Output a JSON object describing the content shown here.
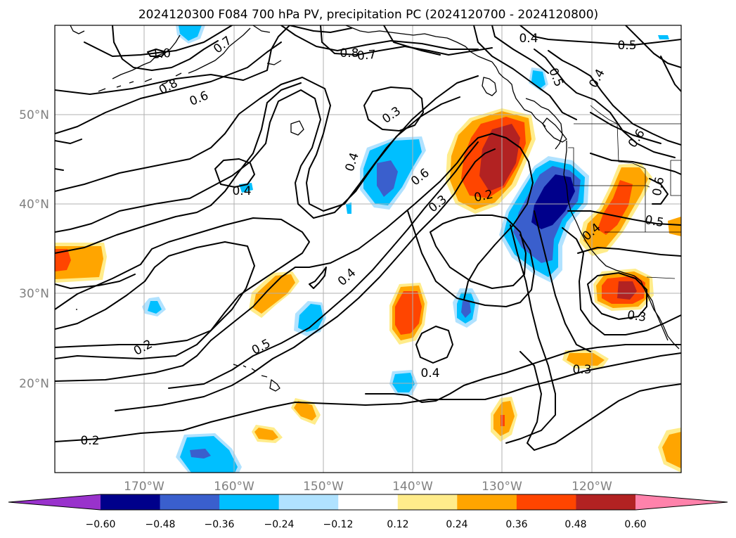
{
  "title": "2024120300 F084 700 hPa PV, precipitation PC (2024120700 - 2024120800)",
  "axes": {
    "lat_labels": [
      "50°N",
      "40°N",
      "30°N",
      "20°N"
    ],
    "lon_labels": [
      "170°W",
      "160°W",
      "150°W",
      "140°W",
      "130°W",
      "120°W"
    ]
  },
  "colorbar": {
    "tick_labels": [
      "−0.60",
      "−0.48",
      "−0.36",
      "−0.24",
      "−0.12",
      "0.12",
      "0.24",
      "0.36",
      "0.48",
      "0.60"
    ],
    "colors": [
      "#9932cc",
      "#00008b",
      "#3a5fcd",
      "#00bfff",
      "#b0e2ff",
      "#ffffff",
      "#ffec8b",
      "#ffa500",
      "#ff4500",
      "#b22222",
      "#ff82ab"
    ],
    "extend": "both"
  },
  "contour_labels": [
    {
      "text": "1.0"
    },
    {
      "text": "0.7"
    },
    {
      "text": "0.8"
    },
    {
      "text": "0.6"
    },
    {
      "text": "0.8"
    },
    {
      "text": "0.7"
    },
    {
      "text": "0.4"
    },
    {
      "text": "0.5"
    },
    {
      "text": "0.5"
    },
    {
      "text": "0.4"
    },
    {
      "text": "0.3"
    },
    {
      "text": "0.4"
    },
    {
      "text": "0.6"
    },
    {
      "text": "0.3"
    },
    {
      "text": "0.2"
    },
    {
      "text": "0.4"
    },
    {
      "text": "0.6"
    },
    {
      "text": "0.6"
    },
    {
      "text": "0.4"
    },
    {
      "text": "0.5"
    },
    {
      "text": "0.4"
    },
    {
      "text": "0.2"
    },
    {
      "text": "0.5"
    },
    {
      "text": "0.4"
    },
    {
      "text": "0.3"
    },
    {
      "text": "0.3"
    },
    {
      "text": "0.2"
    }
  ]
}
